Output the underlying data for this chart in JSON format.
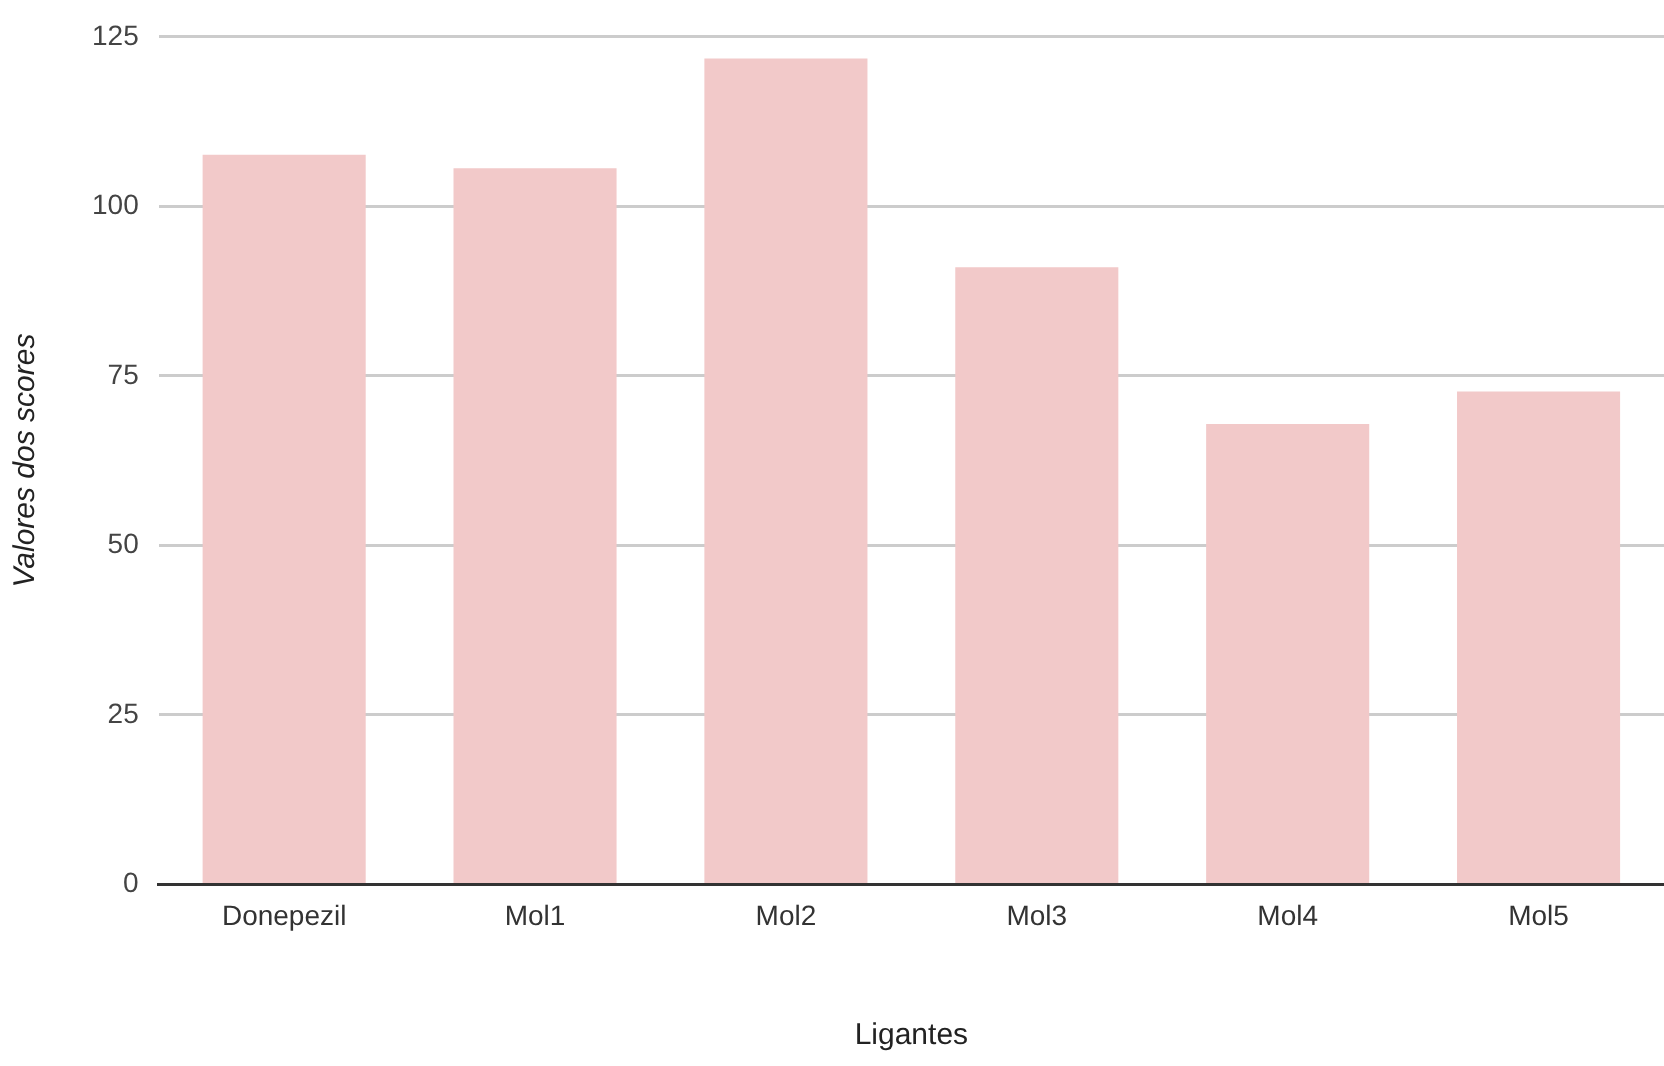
{
  "chart_data": {
    "type": "bar",
    "xlabel": "Ligantes",
    "ylabel": "Valores dos scores",
    "categories": [
      "Donepezil",
      "Mol1",
      "Mol2",
      "Mol3",
      "Mol4",
      "Mol5"
    ],
    "values": [
      107.6,
      105.6,
      121.8,
      91,
      67.9,
      72.7
    ],
    "color": "#f2c9c9",
    "ylim": [
      0,
      125
    ],
    "yticks": [
      0,
      25,
      50,
      75,
      100,
      125
    ],
    "grid": "y",
    "legend": false
  }
}
